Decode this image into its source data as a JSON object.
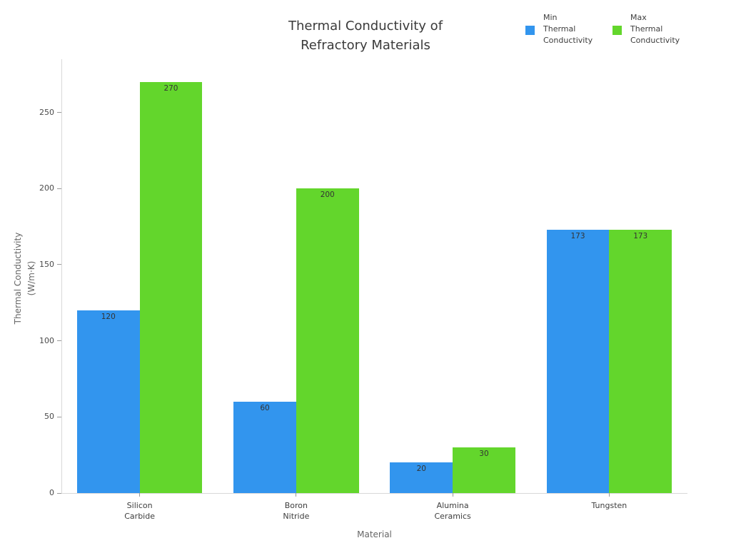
{
  "chart_data": {
    "type": "bar",
    "title": "Thermal Conductivity of\nRefractory Materials",
    "xlabel": "Material",
    "ylabel": "Thermal Conductivity\n(W/m·K)",
    "categories": [
      "Silicon\nCarbide",
      "Boron\nNitride",
      "Alumina\nCeramics",
      "Tungsten"
    ],
    "series": [
      {
        "name": "Min\nThermal\nConductivity",
        "color": "#3295ee",
        "values": [
          120,
          60,
          20,
          173
        ]
      },
      {
        "name": "Max\nThermal\nConductivity",
        "color": "#63d62c",
        "values": [
          270,
          200,
          30,
          173
        ]
      }
    ],
    "bar_value_labels": [
      [
        "120",
        "60",
        "20",
        "173"
      ],
      [
        "270",
        "200",
        "30",
        "173"
      ]
    ],
    "ylim": [
      0,
      284
    ],
    "yticks": [
      0,
      50,
      100,
      150,
      200,
      250
    ],
    "grid": false,
    "legend_position": "top-right"
  },
  "colors": {
    "background": "#ffffff",
    "axis_line": "#d9d9d9",
    "tick": "#9a9a9a",
    "text": "#3d3d3d"
  }
}
